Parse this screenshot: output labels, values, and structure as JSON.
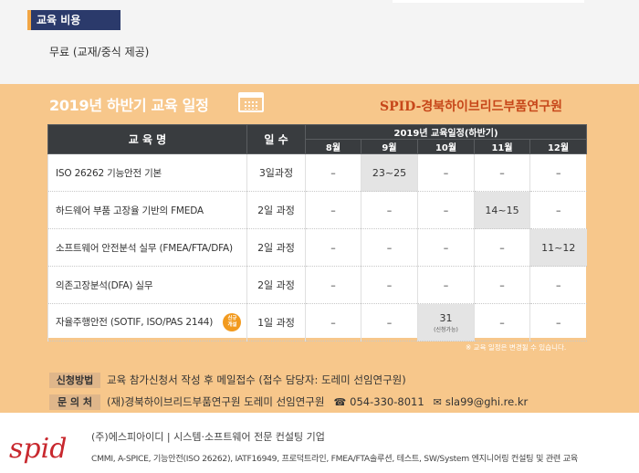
{
  "cost": {
    "label": "교육 비용",
    "text": "무료 (교재/중식 제공)"
  },
  "schedule": {
    "title": "2019년 하반기 교육 일정",
    "org": "SPID-경북하이브리드부품연구원",
    "head_course": "교 육 명",
    "head_days": "일 수",
    "head_period": "2019년 교육일정(하반기)",
    "months": [
      "8월",
      "9월",
      "10월",
      "11월",
      "12월"
    ],
    "rows": [
      {
        "name": "ISO 26262 기능안전 기본",
        "duration": "3일과정",
        "cells": [
          "–",
          "23~25",
          "–",
          "–",
          "–"
        ]
      },
      {
        "name": "하드웨어 부품 고장율 기반의 FMEDA",
        "duration": "2일 과정",
        "cells": [
          "–",
          "–",
          "–",
          "14~15",
          "–"
        ]
      },
      {
        "name": "소프트웨어 안전분석 실무 (FMEA/FTA/DFA)",
        "duration": "2일 과정",
        "cells": [
          "–",
          "–",
          "–",
          "–",
          "11~12"
        ]
      },
      {
        "name": "의존고장분석(DFA) 실무",
        "duration": "2일 과정",
        "cells": [
          "–",
          "–",
          "–",
          "–",
          "–"
        ]
      },
      {
        "name": "자율주행안전 (SOTIF, ISO/PAS 2144)",
        "duration": "1일 과정",
        "cells": [
          "–",
          "–",
          "31",
          "–",
          "–"
        ]
      }
    ],
    "badge_line1": "신규",
    "badge_line2": "개설",
    "oct_note": "(신청가능)",
    "note": "※ 교육 일정은 변경될 수 있습니다."
  },
  "contact": {
    "apply_label": "신청방법",
    "apply_text": "교육 참가신청서 작성 후 메일접수 (접수 담당자: 도레미 선임연구원)",
    "inquiry_label": "문 의 처",
    "inquiry_text": "(재)경북하이브리드부품연구원 도레미 선임연구원",
    "phone": "054-330-8011",
    "email": "sla99@ghi.re.kr"
  },
  "footer": {
    "logo_text": "spid",
    "company": "(주)에스피아이디  |  시스템·소프트웨어 전문 컨설팅 기업",
    "services": "CMMI, A-SPICE, 기능안전(ISO 26262), IATF16949, 프로덕트라인, FMEA/FTA솔루션, 테스트, SW/System 엔지니어링 컨설팅 및 관련 교육"
  },
  "colors": {
    "orange_bg": "#f7c78b",
    "navy": "#2b3a6b",
    "table_head": "#393c3f",
    "org_red": "#c7471a",
    "badge": "#f29a1e"
  }
}
